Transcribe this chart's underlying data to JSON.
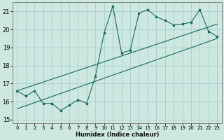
{
  "xlabel": "Humidex (Indice chaleur)",
  "bg_color": "#cce8e0",
  "grid_color": "#aacccc",
  "line_color": "#1a6b5a",
  "xlim": [
    -0.5,
    23.5
  ],
  "ylim": [
    14.8,
    21.5
  ],
  "xticks": [
    0,
    1,
    2,
    3,
    4,
    5,
    6,
    7,
    8,
    9,
    10,
    11,
    12,
    13,
    14,
    15,
    16,
    17,
    18,
    19,
    20,
    21,
    22,
    23
  ],
  "yticks": [
    15,
    16,
    17,
    18,
    19,
    20,
    21
  ],
  "x_data": [
    0,
    1,
    2,
    3,
    4,
    5,
    6,
    7,
    8,
    9,
    10,
    11,
    12,
    13,
    14,
    15,
    16,
    17,
    18,
    19,
    20,
    21,
    22,
    23
  ],
  "y_data": [
    16.6,
    16.3,
    16.6,
    15.9,
    15.9,
    15.5,
    15.8,
    16.1,
    15.9,
    17.4,
    19.8,
    21.3,
    18.7,
    18.85,
    20.9,
    21.1,
    20.7,
    20.5,
    20.25,
    20.3,
    20.4,
    21.1,
    19.9,
    19.6
  ],
  "reg_line1_x": [
    0,
    23
  ],
  "reg_line1_y": [
    16.6,
    20.3
  ],
  "reg_line2_x": [
    0,
    23
  ],
  "reg_line2_y": [
    15.6,
    19.5
  ]
}
